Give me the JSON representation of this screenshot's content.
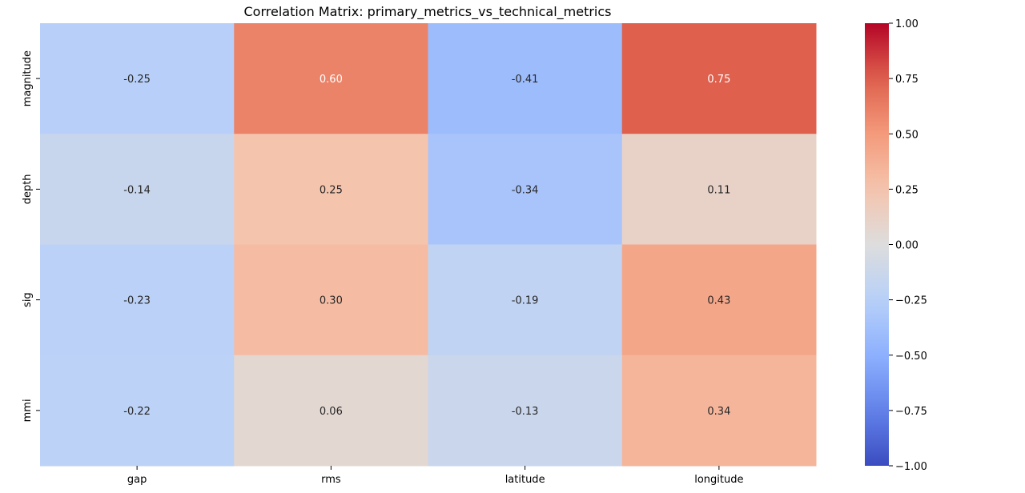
{
  "chart_data": {
    "type": "heatmap",
    "title": "Correlation Matrix: primary_metrics_vs_technical_metrics",
    "xlabel": "",
    "ylabel": "",
    "columns": [
      "gap",
      "rms",
      "latitude",
      "longitude"
    ],
    "rows": [
      "magnitude",
      "depth",
      "sig",
      "mmi"
    ],
    "values": [
      [
        -0.25,
        0.6,
        -0.41,
        0.75
      ],
      [
        -0.14,
        0.25,
        -0.34,
        0.11
      ],
      [
        -0.23,
        0.3,
        -0.19,
        0.43
      ],
      [
        -0.22,
        0.06,
        -0.13,
        0.34
      ]
    ],
    "value_format": "0.00",
    "colormap": "coolwarm",
    "vmin": -1.0,
    "vmax": 1.0,
    "colorbar": {
      "ticks": [
        1.0,
        0.75,
        0.5,
        0.25,
        0.0,
        -0.25,
        -0.5,
        -0.75,
        -1.0
      ],
      "tick_labels": [
        "1.00",
        "0.75",
        "0.50",
        "0.25",
        "0.00",
        "−0.25",
        "−0.50",
        "−0.75",
        "−1.00"
      ]
    }
  }
}
